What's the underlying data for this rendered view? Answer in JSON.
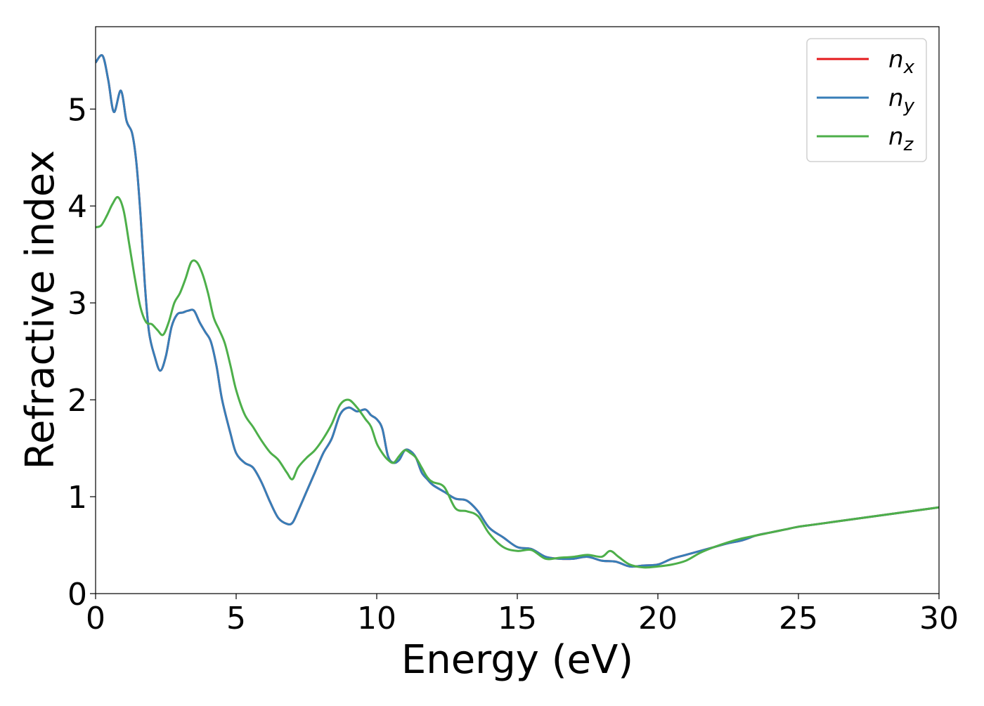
{
  "chart_data": {
    "type": "line",
    "xlabel": "Energy (eV)",
    "ylabel": "Refractive index",
    "xlim": [
      0,
      30
    ],
    "ylim": [
      0,
      5.85
    ],
    "xticks": [
      0,
      5,
      10,
      15,
      20,
      25,
      30
    ],
    "yticks": [
      0,
      1,
      2,
      3,
      4,
      5
    ],
    "legend_position": "top-right",
    "grid": false,
    "series": [
      {
        "base": "n",
        "sub": "x",
        "color": "#e41a1c",
        "x": [
          0,
          0.25,
          0.45,
          0.65,
          0.9,
          1.1,
          1.3,
          1.45,
          1.6,
          1.75,
          1.9,
          2.1,
          2.3,
          2.5,
          2.7,
          2.9,
          3.1,
          3.3,
          3.5,
          3.7,
          3.9,
          4.1,
          4.3,
          4.5,
          4.8,
          5.0,
          5.3,
          5.6,
          5.9,
          6.2,
          6.5,
          6.8,
          7.0,
          7.2,
          7.5,
          7.8,
          8.1,
          8.4,
          8.7,
          9.0,
          9.3,
          9.6,
          9.8,
          10.0,
          10.2,
          10.4,
          10.6,
          10.8,
          11.0,
          11.2,
          11.4,
          11.6,
          11.8,
          12.0,
          12.4,
          12.8,
          13.2,
          13.6,
          14.0,
          14.5,
          15.0,
          15.5,
          16.0,
          16.5,
          17.0,
          17.5,
          18.0,
          18.5,
          19.0,
          19.5,
          20.0,
          20.5,
          21.0,
          21.5,
          22.0,
          22.5,
          23.0,
          23.5,
          24.0,
          24.5,
          25.0,
          25.5,
          26.0,
          26.5,
          27.0,
          27.5,
          28.0,
          28.5,
          29.0,
          29.5,
          30.0
        ],
        "y": [
          5.48,
          5.55,
          5.3,
          4.97,
          5.19,
          4.88,
          4.75,
          4.45,
          3.9,
          3.2,
          2.7,
          2.45,
          2.3,
          2.45,
          2.75,
          2.88,
          2.9,
          2.92,
          2.92,
          2.8,
          2.7,
          2.6,
          2.35,
          2.0,
          1.65,
          1.45,
          1.35,
          1.3,
          1.15,
          0.95,
          0.78,
          0.72,
          0.73,
          0.85,
          1.05,
          1.25,
          1.45,
          1.6,
          1.85,
          1.92,
          1.88,
          1.9,
          1.84,
          1.8,
          1.7,
          1.42,
          1.35,
          1.38,
          1.48,
          1.47,
          1.4,
          1.25,
          1.18,
          1.12,
          1.05,
          0.98,
          0.96,
          0.85,
          0.68,
          0.58,
          0.48,
          0.46,
          0.38,
          0.36,
          0.36,
          0.38,
          0.34,
          0.33,
          0.28,
          0.29,
          0.3,
          0.36,
          0.4,
          0.44,
          0.48,
          0.52,
          0.55,
          0.6,
          0.63,
          0.66,
          0.69,
          0.71,
          0.73,
          0.75,
          0.77,
          0.79,
          0.81,
          0.83,
          0.85,
          0.87,
          0.89
        ]
      },
      {
        "base": "n",
        "sub": "y",
        "color": "#377eb8",
        "x": [
          0,
          0.25,
          0.45,
          0.65,
          0.9,
          1.1,
          1.3,
          1.45,
          1.6,
          1.75,
          1.9,
          2.1,
          2.3,
          2.5,
          2.7,
          2.9,
          3.1,
          3.3,
          3.5,
          3.7,
          3.9,
          4.1,
          4.3,
          4.5,
          4.8,
          5.0,
          5.3,
          5.6,
          5.9,
          6.2,
          6.5,
          6.8,
          7.0,
          7.2,
          7.5,
          7.8,
          8.1,
          8.4,
          8.7,
          9.0,
          9.3,
          9.6,
          9.8,
          10.0,
          10.2,
          10.4,
          10.6,
          10.8,
          11.0,
          11.2,
          11.4,
          11.6,
          11.8,
          12.0,
          12.4,
          12.8,
          13.2,
          13.6,
          14.0,
          14.5,
          15.0,
          15.5,
          16.0,
          16.5,
          17.0,
          17.5,
          18.0,
          18.5,
          19.0,
          19.5,
          20.0,
          20.5,
          21.0,
          21.5,
          22.0,
          22.5,
          23.0,
          23.5,
          24.0,
          24.5,
          25.0,
          25.5,
          26.0,
          26.5,
          27.0,
          27.5,
          28.0,
          28.5,
          29.0,
          29.5,
          30.0
        ],
        "y": [
          5.48,
          5.55,
          5.3,
          4.97,
          5.19,
          4.88,
          4.75,
          4.45,
          3.9,
          3.2,
          2.7,
          2.45,
          2.3,
          2.45,
          2.75,
          2.88,
          2.9,
          2.92,
          2.92,
          2.8,
          2.7,
          2.6,
          2.35,
          2.0,
          1.65,
          1.45,
          1.35,
          1.3,
          1.15,
          0.95,
          0.78,
          0.72,
          0.73,
          0.85,
          1.05,
          1.25,
          1.45,
          1.6,
          1.85,
          1.92,
          1.88,
          1.9,
          1.84,
          1.8,
          1.7,
          1.42,
          1.35,
          1.38,
          1.48,
          1.47,
          1.4,
          1.25,
          1.18,
          1.12,
          1.05,
          0.98,
          0.96,
          0.85,
          0.68,
          0.58,
          0.48,
          0.46,
          0.38,
          0.36,
          0.36,
          0.38,
          0.34,
          0.33,
          0.28,
          0.29,
          0.3,
          0.36,
          0.4,
          0.44,
          0.48,
          0.52,
          0.55,
          0.6,
          0.63,
          0.66,
          0.69,
          0.71,
          0.73,
          0.75,
          0.77,
          0.79,
          0.81,
          0.83,
          0.85,
          0.87,
          0.89
        ]
      },
      {
        "base": "n",
        "sub": "z",
        "color": "#4daf4a",
        "x": [
          0,
          0.2,
          0.4,
          0.6,
          0.8,
          1.0,
          1.2,
          1.4,
          1.6,
          1.8,
          2.0,
          2.2,
          2.4,
          2.6,
          2.8,
          3.0,
          3.2,
          3.4,
          3.6,
          3.8,
          4.0,
          4.2,
          4.4,
          4.6,
          4.8,
          5.0,
          5.3,
          5.6,
          5.9,
          6.2,
          6.5,
          6.8,
          7.0,
          7.2,
          7.5,
          7.8,
          8.1,
          8.4,
          8.7,
          9.0,
          9.3,
          9.6,
          9.8,
          10.0,
          10.2,
          10.4,
          10.6,
          10.8,
          11.0,
          11.2,
          11.4,
          11.6,
          11.8,
          12.0,
          12.4,
          12.8,
          13.2,
          13.6,
          14.0,
          14.5,
          15.0,
          15.5,
          16.0,
          16.5,
          17.0,
          17.5,
          18.0,
          18.3,
          18.6,
          19.0,
          19.5,
          20.0,
          20.5,
          21.0,
          21.5,
          22.0,
          22.5,
          23.0,
          23.5,
          24.0,
          24.5,
          25.0,
          25.5,
          26.0,
          26.5,
          27.0,
          27.5,
          28.0,
          28.5,
          29.0,
          29.5,
          30.0
        ],
        "y": [
          3.78,
          3.8,
          3.9,
          4.02,
          4.09,
          3.95,
          3.6,
          3.25,
          2.95,
          2.8,
          2.78,
          2.72,
          2.67,
          2.8,
          3.0,
          3.1,
          3.25,
          3.42,
          3.42,
          3.3,
          3.1,
          2.85,
          2.72,
          2.58,
          2.35,
          2.1,
          1.85,
          1.72,
          1.58,
          1.46,
          1.38,
          1.25,
          1.18,
          1.3,
          1.4,
          1.48,
          1.6,
          1.75,
          1.95,
          2.0,
          1.92,
          1.8,
          1.72,
          1.55,
          1.45,
          1.38,
          1.35,
          1.42,
          1.48,
          1.45,
          1.4,
          1.3,
          1.2,
          1.15,
          1.1,
          0.88,
          0.85,
          0.8,
          0.62,
          0.48,
          0.44,
          0.45,
          0.36,
          0.37,
          0.38,
          0.4,
          0.38,
          0.44,
          0.38,
          0.3,
          0.27,
          0.28,
          0.3,
          0.34,
          0.42,
          0.48,
          0.53,
          0.57,
          0.6,
          0.63,
          0.66,
          0.69,
          0.71,
          0.73,
          0.75,
          0.77,
          0.79,
          0.81,
          0.83,
          0.85,
          0.87,
          0.89
        ]
      }
    ]
  }
}
